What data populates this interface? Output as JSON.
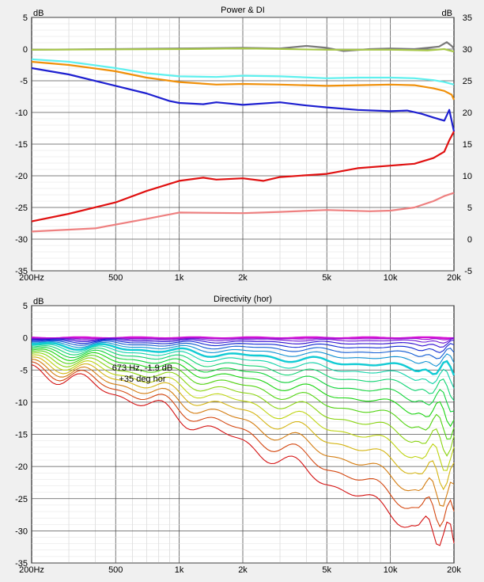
{
  "window": {
    "background": "#f0f0f0",
    "plot_background": "#ffffff"
  },
  "chart_data": [
    {
      "type": "line",
      "title": "Power & DI",
      "xscale": "log",
      "xlim": [
        200,
        20000
      ],
      "ylim_left": [
        -35,
        5
      ],
      "ylim_right": [
        -5,
        35
      ],
      "ylabel_left": "dB",
      "ylabel_right": "dB",
      "x_ticks": [
        200,
        500,
        1000,
        2000,
        5000,
        10000,
        20000
      ],
      "x_tick_labels": [
        "200Hz",
        "500",
        "1k",
        "2k",
        "5k",
        "10k",
        "20k"
      ],
      "y_ticks_left": [
        5,
        0,
        -5,
        -10,
        -15,
        -20,
        -25,
        -30,
        -35
      ],
      "y_ticks_right": [
        35,
        30,
        25,
        20,
        15,
        10,
        5,
        0,
        -5
      ],
      "grid": true,
      "series": [
        {
          "color": "#7a7a7a",
          "axis": "left",
          "points": [
            [
              200,
              -0.1
            ],
            [
              500,
              0
            ],
            [
              1000,
              0.1
            ],
            [
              2000,
              0.2
            ],
            [
              3000,
              0.1
            ],
            [
              4000,
              0.5
            ],
            [
              5000,
              0.2
            ],
            [
              6000,
              -0.3
            ],
            [
              8000,
              0
            ],
            [
              10000,
              0.1
            ],
            [
              13000,
              0
            ],
            [
              15000,
              0.2
            ],
            [
              17000,
              0.4
            ],
            [
              18500,
              1.1
            ],
            [
              19500,
              0.5
            ],
            [
              20000,
              0.1
            ]
          ]
        },
        {
          "color": "#a8c84a",
          "axis": "left",
          "points": [
            [
              200,
              -0.1
            ],
            [
              1000,
              0
            ],
            [
              2000,
              0.1
            ],
            [
              5000,
              -0.1
            ],
            [
              10000,
              -0.1
            ],
            [
              15000,
              -0.2
            ],
            [
              18000,
              0
            ],
            [
              20000,
              -0.4
            ]
          ]
        },
        {
          "color": "#5ff0ee",
          "axis": "left",
          "points": [
            [
              200,
              -1.6
            ],
            [
              300,
              -2.0
            ],
            [
              500,
              -3.0
            ],
            [
              700,
              -3.8
            ],
            [
              1000,
              -4.3
            ],
            [
              1500,
              -4.4
            ],
            [
              2000,
              -4.2
            ],
            [
              3000,
              -4.3
            ],
            [
              5000,
              -4.6
            ],
            [
              7000,
              -4.5
            ],
            [
              10000,
              -4.5
            ],
            [
              13000,
              -4.6
            ],
            [
              16000,
              -4.9
            ],
            [
              18000,
              -5.2
            ],
            [
              20000,
              -5.6
            ]
          ]
        },
        {
          "color": "#f0900a",
          "axis": "left",
          "points": [
            [
              200,
              -2.0
            ],
            [
              300,
              -2.5
            ],
            [
              500,
              -3.5
            ],
            [
              700,
              -4.5
            ],
            [
              1000,
              -5.2
            ],
            [
              1500,
              -5.6
            ],
            [
              2000,
              -5.5
            ],
            [
              3000,
              -5.6
            ],
            [
              5000,
              -5.8
            ],
            [
              7000,
              -5.7
            ],
            [
              10000,
              -5.6
            ],
            [
              13000,
              -5.7
            ],
            [
              16000,
              -6.2
            ],
            [
              18000,
              -6.6
            ],
            [
              19500,
              -7.2
            ],
            [
              20000,
              -8.0
            ]
          ]
        },
        {
          "color": "#1d1fd0",
          "axis": "left",
          "points": [
            [
              200,
              -3.0
            ],
            [
              300,
              -4.0
            ],
            [
              500,
              -5.8
            ],
            [
              700,
              -7.0
            ],
            [
              900,
              -8.2
            ],
            [
              1000,
              -8.5
            ],
            [
              1300,
              -8.7
            ],
            [
              1500,
              -8.4
            ],
            [
              2000,
              -8.8
            ],
            [
              3000,
              -8.4
            ],
            [
              4000,
              -8.9
            ],
            [
              5000,
              -9.2
            ],
            [
              7000,
              -9.6
            ],
            [
              10000,
              -9.8
            ],
            [
              12000,
              -9.7
            ],
            [
              14000,
              -10.2
            ],
            [
              16000,
              -10.8
            ],
            [
              18000,
              -11.3
            ],
            [
              19000,
              -9.6
            ],
            [
              20000,
              -13.0
            ]
          ]
        },
        {
          "color": "#e01010",
          "axis": "right",
          "points": [
            [
              200,
              2.8
            ],
            [
              300,
              4.0
            ],
            [
              500,
              5.8
            ],
            [
              700,
              7.6
            ],
            [
              1000,
              9.2
            ],
            [
              1300,
              9.7
            ],
            [
              1500,
              9.4
            ],
            [
              2000,
              9.6
            ],
            [
              2500,
              9.2
            ],
            [
              3000,
              9.8
            ],
            [
              5000,
              10.3
            ],
            [
              7000,
              11.2
            ],
            [
              10000,
              11.6
            ],
            [
              13000,
              11.9
            ],
            [
              16000,
              12.8
            ],
            [
              18000,
              13.8
            ],
            [
              19000,
              15.6
            ],
            [
              20000,
              17.0
            ]
          ]
        },
        {
          "color": "#ee8080",
          "axis": "right",
          "points": [
            [
              200,
              1.2
            ],
            [
              400,
              1.7
            ],
            [
              700,
              3.2
            ],
            [
              1000,
              4.2
            ],
            [
              2000,
              4.1
            ],
            [
              3000,
              4.3
            ],
            [
              5000,
              4.6
            ],
            [
              8000,
              4.4
            ],
            [
              10000,
              4.5
            ],
            [
              13000,
              5.0
            ],
            [
              16000,
              6.0
            ],
            [
              18000,
              6.8
            ],
            [
              20000,
              7.3
            ]
          ]
        }
      ]
    },
    {
      "type": "line",
      "title": "Directivity (hor)",
      "xscale": "log",
      "xlim": [
        200,
        20000
      ],
      "ylim": [
        -35,
        5
      ],
      "ylabel": "dB",
      "x_ticks": [
        200,
        500,
        1000,
        2000,
        5000,
        10000,
        20000
      ],
      "x_tick_labels": [
        "200Hz",
        "500",
        "1k",
        "2k",
        "5k",
        "10k",
        "20k"
      ],
      "y_ticks": [
        5,
        0,
        -5,
        -10,
        -15,
        -20,
        -25,
        -30,
        -35
      ],
      "grid": true,
      "annotation": {
        "text_line1": "673 Hz, -1.9 dB",
        "text_line2": "+35 deg hor",
        "x": 673,
        "y": -1.9
      },
      "series_count": 19,
      "series_angles_deg": [
        0,
        5,
        10,
        15,
        20,
        25,
        30,
        35,
        40,
        45,
        50,
        55,
        60,
        65,
        70,
        75,
        80,
        85,
        90
      ],
      "highlighted_angle_deg": 35
    }
  ]
}
